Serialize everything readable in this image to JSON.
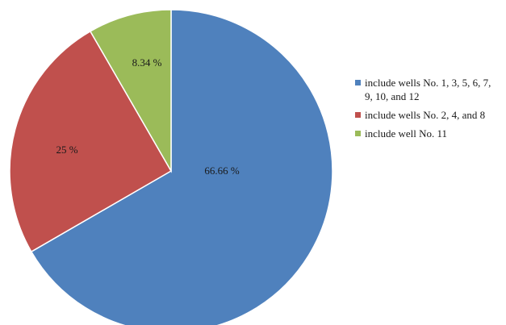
{
  "chart_data": {
    "type": "pie",
    "slices": [
      {
        "label": "include wells No. 1, 3, 5, 6, 7, 9, 10, and 12",
        "value": 66.66,
        "data_label": "66.66 %",
        "color": "#4F81BD"
      },
      {
        "label": "include wells No. 2, 4, and 8",
        "value": 25,
        "data_label": "25 %",
        "color": "#C0504D"
      },
      {
        "label": "include well No. 11",
        "value": 8.34,
        "data_label": "8.34 %",
        "color": "#9BBB59"
      }
    ],
    "start_angle_deg": 0,
    "direction": "clockwise",
    "legend_position": "right"
  }
}
